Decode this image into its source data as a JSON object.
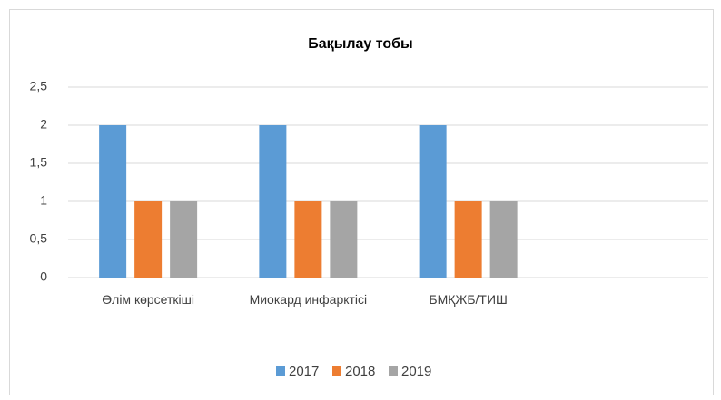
{
  "chart_data": {
    "type": "bar",
    "title": "Бақылау тобы",
    "categories": [
      "Өлім көрсеткіші",
      "Миокард инфарктісі",
      "БМҚЖБ/ТИШ",
      null
    ],
    "series": [
      {
        "name": "2017",
        "color": "#5b9bd5",
        "values": [
          2,
          2,
          2,
          null
        ]
      },
      {
        "name": "2018",
        "color": "#ed7d31",
        "values": [
          1,
          1,
          1,
          null
        ]
      },
      {
        "name": "2019",
        "color": "#a5a5a5",
        "values": [
          1,
          1,
          1,
          null
        ]
      }
    ],
    "ylim": [
      0,
      2.5
    ],
    "yticks": [
      0,
      {
        "value": 0.5,
        "label": "0,5"
      },
      1,
      {
        "value": 1.5,
        "label": "1,5"
      },
      2,
      {
        "value": 2.5,
        "label": "2,5"
      }
    ],
    "grid": true,
    "legend": "bottom"
  }
}
